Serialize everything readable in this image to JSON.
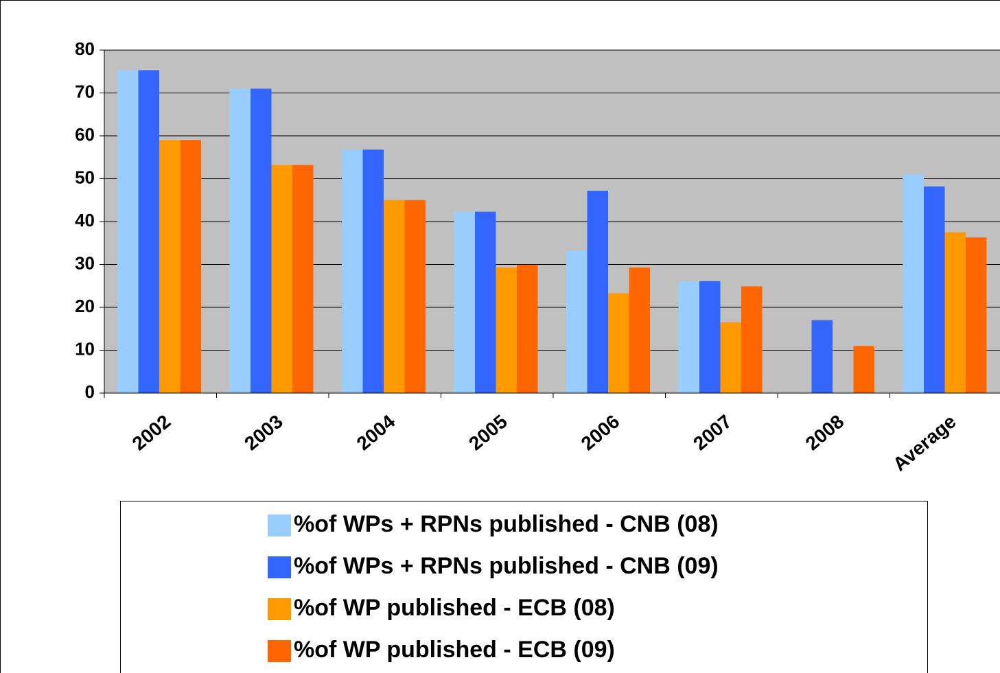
{
  "chart_data": {
    "type": "bar",
    "categories": [
      "2002",
      "2003",
      "2004",
      "2005",
      "2006",
      "2007",
      "2008",
      "Average"
    ],
    "series": [
      {
        "name": "%of WPs + RPNs published - CNB (08)",
        "color": "#99ccff",
        "values": [
          75.3,
          71,
          56.8,
          42.3,
          33.2,
          26.1,
          null,
          51
        ]
      },
      {
        "name": "%of WPs + RPNs published - CNB (09)",
        "color": "#3366ff",
        "values": [
          75.3,
          71,
          56.8,
          42.3,
          47.2,
          26.1,
          17,
          48.2
        ]
      },
      {
        "name": "%of WP published - ECB (08)",
        "color": "#ff9900",
        "values": [
          59,
          53.2,
          45,
          29.3,
          23.3,
          16.5,
          null,
          37.5
        ]
      },
      {
        "name": "%of WP published - ECB (09)",
        "color": "#ff6600",
        "values": [
          59,
          53.2,
          45,
          29.9,
          29.3,
          24.9,
          11,
          36.3
        ]
      }
    ],
    "ylim": [
      0,
      80
    ],
    "yticks": [
      0,
      10,
      20,
      30,
      40,
      50,
      60,
      70,
      80
    ],
    "grid": true,
    "legend": "bottom"
  }
}
